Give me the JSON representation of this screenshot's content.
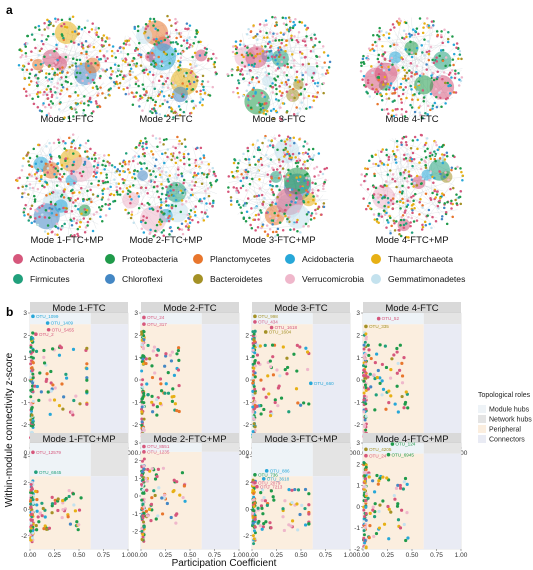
{
  "panel_a_label": "a",
  "panel_b_label": "b",
  "colors": {
    "Actinobacteria": "#d6577c",
    "Proteobacteria": "#1f9a4a",
    "Planctomycetes": "#e8762d",
    "Acidobacteria": "#27a7d8",
    "Thaumarchaeota": "#e7b015",
    "Firmicutes": "#21a07c",
    "Chloroflexi": "#4487c4",
    "Bacteroidetes": "#a49126",
    "Verrucomicrobia": "#efb7cb",
    "Gemmatimonadetes": "#c4e2ee"
  },
  "networks": [
    "Mode 1-FTC",
    "Mode 2-FTC",
    "Mode 3-FTC",
    "Mode 4-FTC",
    "Mode 1-FTC+MP",
    "Mode 2-FTC+MP",
    "Mode 3-FTC+MP",
    "Mode 4-FTC+MP"
  ],
  "legend": [
    "Actinobacteria",
    "Proteobacteria",
    "Planctomycetes",
    "Acidobacteria",
    "Thaumarchaeota",
    "Firmicutes",
    "Chloroflexi",
    "Bacteroidetes",
    "Verrucomicrobia",
    "Gemmatimonadetes"
  ],
  "roles_title": "Topological roles",
  "roles": [
    "Module hubs",
    "Network hubs",
    "Peripheral",
    "Connectors"
  ],
  "chart_data": {
    "type": "scatter",
    "xlabel": "Participation Coefficient",
    "ylabel": "Within-module connectivity z-score",
    "xlim": [
      0,
      1
    ],
    "x_ticks": [
      "0.00",
      "0.25",
      "0.50",
      "0.75",
      "1.00"
    ],
    "thresholds": {
      "pc": 0.62,
      "z": 2.5
    },
    "panels": [
      {
        "title": "Mode 1-FTC",
        "ylim": [
          -3,
          3
        ],
        "y_ticks": [
          -2,
          -1,
          0,
          1,
          2,
          3
        ],
        "labels": [
          {
            "text": "OTU_1099",
            "x": 0.03,
            "y": 2.85,
            "color": "#27a7d8"
          },
          {
            "text": "OTU_1409",
            "x": 0.18,
            "y": 2.55,
            "color": "#27a7d8"
          },
          {
            "text": "OTU_5455",
            "x": 0.19,
            "y": 2.25,
            "color": "#d6577c"
          },
          {
            "text": "OTU_2",
            "x": 0.06,
            "y": 2.05,
            "color": "#d6577c"
          }
        ]
      },
      {
        "title": "Mode 2-FTC",
        "ylim": [
          -3,
          3
        ],
        "y_ticks": [
          -2,
          -1,
          0,
          1,
          2,
          3
        ],
        "labels": [
          {
            "text": "OTU_24",
            "x": 0.03,
            "y": 2.8,
            "color": "#d6577c"
          },
          {
            "text": "OTU_317",
            "x": 0.03,
            "y": 2.5,
            "color": "#d6577c"
          }
        ]
      },
      {
        "title": "Mode 3-FTC",
        "ylim": [
          -3,
          3
        ],
        "y_ticks": [
          -2,
          -1,
          0,
          1,
          2
        ],
        "labels": [
          {
            "text": "OTU_998",
            "x": 0.03,
            "y": 2.85,
            "color": "#a49126"
          },
          {
            "text": "OTU_434",
            "x": 0.03,
            "y": 2.6,
            "color": "#d6577c"
          },
          {
            "text": "OTU_1618",
            "x": 0.2,
            "y": 2.35,
            "color": "#d6577c"
          },
          {
            "text": "OTU_1604",
            "x": 0.14,
            "y": 2.15,
            "color": "#a49126"
          },
          {
            "text": "OTU_660",
            "x": 0.6,
            "y": -0.15,
            "color": "#27a7d8"
          }
        ]
      },
      {
        "title": "Mode 4-FTC",
        "ylim": [
          -3,
          3
        ],
        "y_ticks": [
          -2,
          -1,
          0,
          1,
          2,
          3
        ],
        "labels": [
          {
            "text": "OTU_52",
            "x": 0.16,
            "y": 2.75,
            "color": "#d6577c"
          },
          {
            "text": "OTU_335",
            "x": 0.03,
            "y": 2.4,
            "color": "#a49126"
          }
        ]
      },
      {
        "title": "Mode 1-FTC+MP",
        "ylim": [
          -3,
          5
        ],
        "y_ticks": [
          -2,
          0,
          2,
          4
        ],
        "labels": [
          {
            "text": "OTU_12579",
            "x": 0.03,
            "y": 4.3,
            "color": "#d6577c"
          },
          {
            "text": "OTU_6845",
            "x": 0.06,
            "y": 2.8,
            "color": "#21a07c"
          }
        ]
      },
      {
        "title": "Mode 2-FTC+MP",
        "ylim": [
          -3,
          3
        ],
        "y_ticks": [
          -2,
          -1,
          0,
          1,
          2,
          3
        ],
        "labels": [
          {
            "text": "OTU_8551",
            "x": 0.03,
            "y": 2.8,
            "color": "#d6577c"
          },
          {
            "text": "OTU_1235",
            "x": 0.03,
            "y": 2.5,
            "color": "#d6577c"
          }
        ]
      },
      {
        "title": "Mode 3-FTC+MP",
        "ylim": [
          -3,
          5
        ],
        "y_ticks": [
          -2,
          0,
          2,
          4
        ],
        "labels": [
          {
            "text": "OTU_886",
            "x": 0.15,
            "y": 2.9,
            "color": "#27a7d8"
          },
          {
            "text": "OTU_736",
            "x": 0.03,
            "y": 2.6,
            "color": "#1f9a4a"
          },
          {
            "text": "OTU_3618",
            "x": 0.12,
            "y": 2.3,
            "color": "#27a7d8"
          },
          {
            "text": "OTU_2079",
            "x": 0.03,
            "y": 2.0,
            "color": "#d6577c"
          },
          {
            "text": "OTU_7213",
            "x": 0.05,
            "y": 1.7,
            "color": "#d6577c"
          }
        ]
      },
      {
        "title": "Mode 4-FTC+MP",
        "ylim": [
          -2,
          3
        ],
        "y_ticks": [
          -2,
          -1,
          0,
          1,
          2,
          3
        ],
        "labels": [
          {
            "text": "OTU_124",
            "x": 0.3,
            "y": 2.95,
            "color": "#1f9a4a"
          },
          {
            "text": "OTU_4205",
            "x": 0.03,
            "y": 2.7,
            "color": "#a49126"
          },
          {
            "text": "OTU_6945",
            "x": 0.26,
            "y": 2.45,
            "color": "#1f9a4a"
          },
          {
            "text": "OTU_24",
            "x": 0.03,
            "y": 2.4,
            "color": "#d6577c"
          }
        ]
      }
    ]
  }
}
